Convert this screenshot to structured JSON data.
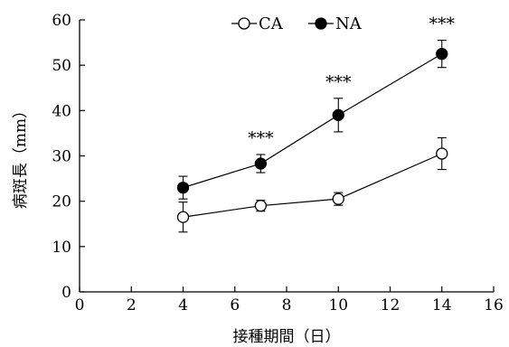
{
  "chart_data": {
    "type": "line",
    "xlabel": "接種期間（日）",
    "ylabel": "病斑長（mm）",
    "xlim": [
      0,
      16
    ],
    "ylim": [
      0,
      60
    ],
    "xticks": [
      0,
      2,
      4,
      6,
      8,
      10,
      12,
      14,
      16
    ],
    "yticks": [
      0,
      10,
      20,
      30,
      40,
      50,
      60
    ],
    "grid": false,
    "legend_position": "top-center",
    "series": [
      {
        "name": "CA",
        "marker": "open-circle",
        "x": [
          4,
          7,
          10,
          14
        ],
        "values": [
          16.5,
          19.0,
          20.5,
          30.5
        ],
        "error": [
          3.3,
          1.2,
          1.4,
          3.5
        ]
      },
      {
        "name": "NA",
        "marker": "filled-circle",
        "x": [
          4,
          7,
          10,
          14
        ],
        "values": [
          23.0,
          28.3,
          39.0,
          52.5
        ],
        "error": [
          2.5,
          2.0,
          3.7,
          3.0
        ]
      }
    ],
    "annotations": [
      {
        "x": 7,
        "text": "***"
      },
      {
        "x": 10,
        "text": "***"
      },
      {
        "x": 14,
        "text": "***"
      }
    ]
  }
}
